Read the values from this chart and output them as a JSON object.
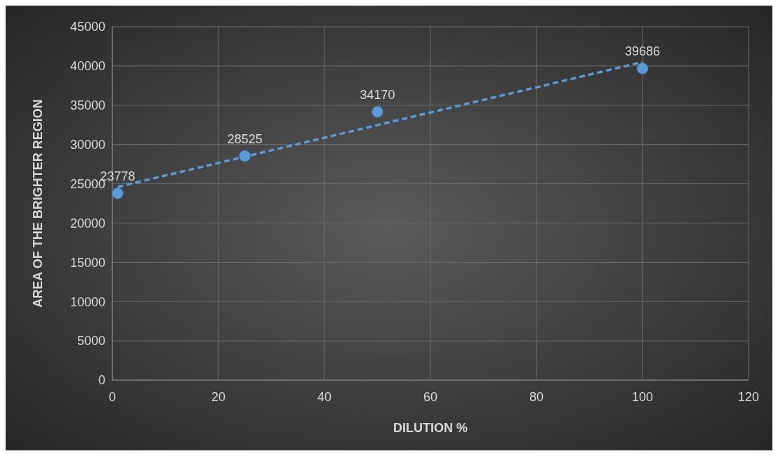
{
  "chart_data": {
    "type": "scatter",
    "xlabel": "DILUTION %",
    "ylabel": "AREA OF THE BRIGHTER REGION",
    "xlim": [
      0,
      120
    ],
    "xticks": [
      0,
      20,
      40,
      60,
      80,
      100,
      120
    ],
    "ylim": [
      0,
      45000
    ],
    "yticks": [
      0,
      5000,
      10000,
      15000,
      20000,
      25000,
      30000,
      35000,
      40000,
      45000
    ],
    "grid": true,
    "series": [
      {
        "color": "#5b9bd5",
        "marker": "circle",
        "x": [
          1,
          25,
          50,
          100
        ],
        "values": [
          23778,
          28525,
          34170,
          39686
        ],
        "value_labels": [
          "23778",
          "28525",
          "34170",
          "39686"
        ]
      },
      {
        "type": "line",
        "color": "#5b9bd5",
        "marker": "none",
        "line_style": "dashed",
        "x": [
          1,
          100
        ],
        "values": [
          24600,
          40500
        ]
      }
    ]
  }
}
